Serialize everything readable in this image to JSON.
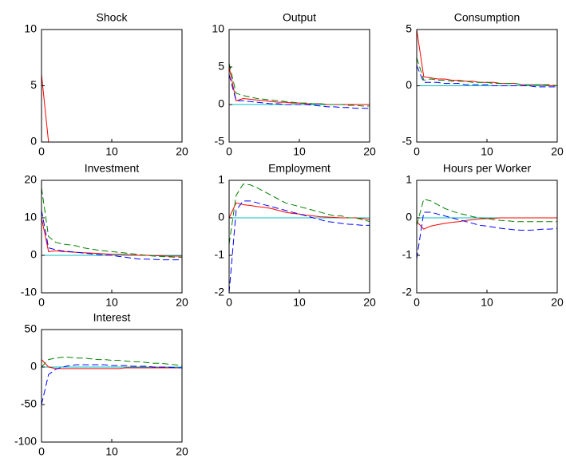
{
  "chart_data": [
    {
      "type": "line",
      "title": "Shock",
      "x": [
        0,
        1,
        2,
        3,
        4,
        5,
        6,
        7,
        8,
        9,
        10,
        11,
        12,
        13,
        14,
        15,
        16,
        17,
        18,
        19,
        20
      ],
      "xlim": [
        0,
        20
      ],
      "xticks": [
        0,
        10,
        20
      ],
      "ylim": [
        0,
        10
      ],
      "yticks": [
        0,
        5,
        10
      ],
      "series": [
        {
          "color": "#ff0000",
          "style": "solid",
          "values": [
            6,
            0,
            0,
            0,
            0,
            0,
            0,
            0,
            0,
            0,
            0,
            0,
            0,
            0,
            0,
            0,
            0,
            0,
            0,
            0,
            0
          ]
        }
      ]
    },
    {
      "type": "line",
      "title": "Output",
      "x": [
        0,
        1,
        2,
        3,
        4,
        5,
        6,
        7,
        8,
        9,
        10,
        11,
        12,
        13,
        14,
        15,
        16,
        17,
        18,
        19,
        20
      ],
      "xlim": [
        0,
        20
      ],
      "xticks": [
        0,
        10,
        20
      ],
      "ylim": [
        -5,
        10
      ],
      "yticks": [
        -5,
        0,
        5,
        10
      ],
      "series": [
        {
          "color": "#00bfbf",
          "style": "solid",
          "values": [
            0,
            0,
            0,
            0,
            0,
            0,
            0,
            0,
            0,
            0,
            0,
            0,
            0,
            0,
            0,
            0,
            0,
            0,
            0,
            0,
            0
          ]
        },
        {
          "color": "#ff0000",
          "style": "solid",
          "values": [
            5,
            0.5,
            0.8,
            0.7,
            0.6,
            0.5,
            0.4,
            0.3,
            0.3,
            0.2,
            0.2,
            0.1,
            0.1,
            0.1,
            0,
            0,
            0,
            0,
            0,
            0,
            0
          ]
        },
        {
          "color": "#0000ff",
          "style": "dashed",
          "values": [
            4,
            0.5,
            0.5,
            0.4,
            0.3,
            0.2,
            0.1,
            0.1,
            0,
            0,
            0,
            0,
            -0.1,
            -0.2,
            -0.3,
            -0.3,
            -0.4,
            -0.4,
            -0.5,
            -0.5,
            -0.5
          ]
        },
        {
          "color": "#008000",
          "style": "dashed",
          "values": [
            5.5,
            1.5,
            1.2,
            1,
            0.8,
            0.7,
            0.6,
            0.5,
            0.4,
            0.3,
            0.2,
            0.2,
            0.1,
            0.1,
            0,
            0,
            0,
            -0.1,
            -0.1,
            -0.2,
            -0.2
          ]
        }
      ]
    },
    {
      "type": "line",
      "title": "Consumption",
      "x": [
        0,
        1,
        2,
        3,
        4,
        5,
        6,
        7,
        8,
        9,
        10,
        11,
        12,
        13,
        14,
        15,
        16,
        17,
        18,
        19,
        20
      ],
      "xlim": [
        0,
        20
      ],
      "xticks": [
        0,
        10,
        20
      ],
      "ylim": [
        -5,
        5
      ],
      "yticks": [
        -5,
        0,
        5
      ],
      "series": [
        {
          "color": "#00bfbf",
          "style": "solid",
          "values": [
            0,
            0,
            0,
            0,
            0,
            0,
            0,
            0,
            0,
            0,
            0,
            0,
            0,
            0,
            0,
            0,
            0,
            0,
            0,
            0,
            0
          ]
        },
        {
          "color": "#ff0000",
          "style": "solid",
          "values": [
            5,
            0.8,
            0.7,
            0.6,
            0.6,
            0.5,
            0.5,
            0.4,
            0.4,
            0.3,
            0.3,
            0.3,
            0.2,
            0.2,
            0.2,
            0.1,
            0.1,
            0.1,
            0.1,
            0,
            0
          ]
        },
        {
          "color": "#0000ff",
          "style": "dashed",
          "values": [
            1.8,
            0.3,
            0.3,
            0.3,
            0.2,
            0.2,
            0.2,
            0.1,
            0.1,
            0.1,
            0.1,
            0,
            0,
            0,
            0,
            0,
            0,
            -0.1,
            -0.1,
            -0.1,
            -0.1
          ]
        },
        {
          "color": "#008000",
          "style": "dashed",
          "values": [
            2.5,
            0.5,
            0.6,
            0.5,
            0.5,
            0.4,
            0.4,
            0.4,
            0.3,
            0.3,
            0.3,
            0.2,
            0.2,
            0.2,
            0.2,
            0.1,
            0.1,
            0.1,
            0.1,
            0.1,
            0
          ]
        }
      ]
    },
    {
      "type": "line",
      "title": "Investment",
      "x": [
        0,
        1,
        2,
        3,
        4,
        5,
        6,
        7,
        8,
        9,
        10,
        11,
        12,
        13,
        14,
        15,
        16,
        17,
        18,
        19,
        20
      ],
      "xlim": [
        0,
        20
      ],
      "xticks": [
        0,
        10,
        20
      ],
      "ylim": [
        -10,
        20
      ],
      "yticks": [
        -10,
        0,
        10,
        20
      ],
      "series": [
        {
          "color": "#00bfbf",
          "style": "solid",
          "values": [
            0,
            0,
            0,
            0,
            0,
            0,
            0,
            0,
            0,
            0,
            0,
            0,
            0,
            0,
            0,
            0,
            0,
            0,
            0,
            0,
            0
          ]
        },
        {
          "color": "#ff0000",
          "style": "solid",
          "values": [
            10,
            1,
            1.2,
            1,
            0.9,
            0.8,
            0.7,
            0.6,
            0.5,
            0.4,
            0.3,
            0.3,
            0.2,
            0.1,
            0,
            0,
            -0.1,
            -0.1,
            -0.2,
            -0.2,
            -0.2
          ]
        },
        {
          "color": "#0000ff",
          "style": "dashed",
          "values": [
            12,
            2,
            1.5,
            1.2,
            1,
            0.8,
            0.6,
            0.4,
            0.2,
            0.1,
            0,
            -0.3,
            -0.5,
            -0.8,
            -1,
            -1,
            -1.1,
            -1.2,
            -1.2,
            -1.2,
            -1.2
          ]
        },
        {
          "color": "#008000",
          "style": "dashed",
          "values": [
            18,
            5,
            3.5,
            3,
            2.8,
            2.5,
            2,
            1.7,
            1.4,
            1.2,
            1,
            0.8,
            0.6,
            0.4,
            0.2,
            0,
            -0.2,
            -0.3,
            -0.4,
            -0.5,
            -0.5
          ]
        }
      ]
    },
    {
      "type": "line",
      "title": "Employment",
      "x": [
        0,
        1,
        2,
        3,
        4,
        5,
        6,
        7,
        8,
        9,
        10,
        11,
        12,
        13,
        14,
        15,
        16,
        17,
        18,
        19,
        20
      ],
      "xlim": [
        0,
        20
      ],
      "xticks": [
        0,
        10,
        20
      ],
      "ylim": [
        -2,
        1
      ],
      "yticks": [
        -2,
        -1,
        0,
        1
      ],
      "series": [
        {
          "color": "#00bfbf",
          "style": "solid",
          "values": [
            0,
            0,
            0,
            0,
            0,
            0,
            0,
            0,
            0,
            0,
            0,
            0,
            0,
            0,
            0,
            0,
            0,
            0,
            0,
            0,
            0
          ]
        },
        {
          "color": "#ff0000",
          "style": "solid",
          "values": [
            0,
            0.4,
            0.35,
            0.33,
            0.3,
            0.28,
            0.25,
            0.2,
            0.15,
            0.12,
            0.1,
            0.07,
            0.05,
            0.03,
            0.02,
            0.01,
            0,
            0,
            0,
            -0.02,
            -0.05
          ]
        },
        {
          "color": "#0000ff",
          "style": "dashed",
          "values": [
            -2,
            0.2,
            0.45,
            0.45,
            0.4,
            0.35,
            0.3,
            0.25,
            0.2,
            0.15,
            0.1,
            0.05,
            0,
            -0.05,
            -0.1,
            -0.12,
            -0.15,
            -0.17,
            -0.18,
            -0.2,
            -0.2
          ]
        },
        {
          "color": "#008000",
          "style": "dashed",
          "values": [
            -0.7,
            0.6,
            0.9,
            0.88,
            0.8,
            0.7,
            0.6,
            0.5,
            0.4,
            0.35,
            0.3,
            0.25,
            0.2,
            0.15,
            0.1,
            0.05,
            0.05,
            0,
            0,
            -0.05,
            -0.1
          ]
        }
      ]
    },
    {
      "type": "line",
      "title": "Hours per Worker",
      "x": [
        0,
        1,
        2,
        3,
        4,
        5,
        6,
        7,
        8,
        9,
        10,
        11,
        12,
        13,
        14,
        15,
        16,
        17,
        18,
        19,
        20
      ],
      "xlim": [
        0,
        20
      ],
      "xticks": [
        0,
        10,
        20
      ],
      "ylim": [
        -2,
        1
      ],
      "yticks": [
        -2,
        -1,
        0,
        1
      ],
      "series": [
        {
          "color": "#00bfbf",
          "style": "solid",
          "values": [
            0,
            0,
            0,
            0,
            0,
            0,
            0,
            0,
            0,
            0,
            0,
            0,
            0,
            0,
            0,
            0,
            0,
            0,
            0,
            0,
            0
          ]
        },
        {
          "color": "#ff0000",
          "style": "solid",
          "values": [
            -0.1,
            -0.3,
            -0.22,
            -0.18,
            -0.15,
            -0.12,
            -0.1,
            -0.07,
            -0.05,
            -0.03,
            -0.02,
            -0.01,
            0,
            0,
            0,
            0,
            0,
            0,
            0,
            0,
            0
          ]
        },
        {
          "color": "#0000ff",
          "style": "dashed",
          "values": [
            -1.1,
            0.15,
            0.15,
            0.1,
            0.05,
            0,
            -0.05,
            -0.1,
            -0.15,
            -0.2,
            -0.22,
            -0.25,
            -0.28,
            -0.3,
            -0.32,
            -0.33,
            -0.33,
            -0.32,
            -0.3,
            -0.3,
            -0.28
          ]
        },
        {
          "color": "#008000",
          "style": "dashed",
          "values": [
            -0.2,
            0.5,
            0.45,
            0.35,
            0.25,
            0.18,
            0.12,
            0.08,
            0.03,
            0,
            -0.02,
            -0.05,
            -0.07,
            -0.08,
            -0.1,
            -0.1,
            -0.1,
            -0.1,
            -0.1,
            -0.1,
            -0.1
          ]
        }
      ]
    },
    {
      "type": "line",
      "title": "Interest",
      "x": [
        0,
        1,
        2,
        3,
        4,
        5,
        6,
        7,
        8,
        9,
        10,
        11,
        12,
        13,
        14,
        15,
        16,
        17,
        18,
        19,
        20
      ],
      "xlim": [
        0,
        20
      ],
      "xticks": [
        0,
        10,
        20
      ],
      "ylim": [
        -100,
        50
      ],
      "yticks": [
        -100,
        -50,
        0,
        50
      ],
      "series": [
        {
          "color": "#00bfbf",
          "style": "solid",
          "values": [
            0,
            0,
            0,
            0,
            0,
            0,
            0,
            0,
            0,
            0,
            0,
            0,
            0,
            0,
            0,
            0,
            0,
            0,
            0,
            0,
            0
          ]
        },
        {
          "color": "#ff0000",
          "style": "solid",
          "values": [
            10,
            0,
            -2,
            -2,
            -2,
            -2,
            -2,
            -2,
            -2,
            -2,
            -2,
            -2,
            -1,
            -1,
            -1,
            -1,
            -1,
            -1,
            -1,
            -1,
            -1
          ]
        },
        {
          "color": "#0000ff",
          "style": "dashed",
          "values": [
            -50,
            -10,
            -3,
            0,
            2,
            3,
            3,
            3,
            3,
            3,
            2,
            2,
            2,
            1,
            1,
            1,
            0,
            0,
            0,
            -1,
            -1
          ]
        },
        {
          "color": "#008000",
          "style": "dashed",
          "values": [
            0,
            10,
            12,
            13,
            13,
            12,
            12,
            11,
            10,
            10,
            9,
            9,
            8,
            7,
            7,
            6,
            5,
            5,
            4,
            3,
            2
          ]
        }
      ]
    }
  ]
}
